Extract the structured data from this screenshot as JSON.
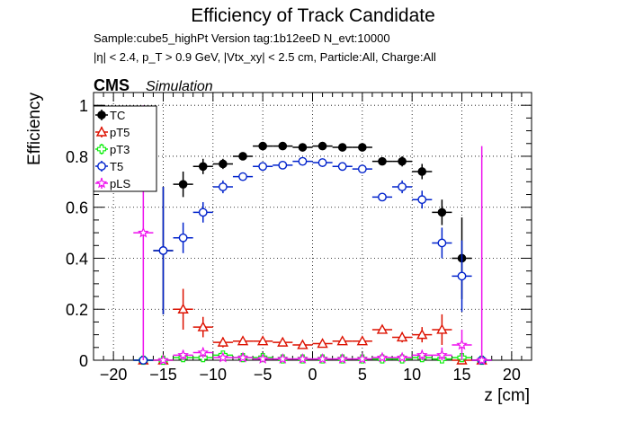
{
  "chart_data": {
    "type": "scatter",
    "title": "Efficiency of Track Candidate",
    "info_line1": "Sample:cube5_highPt   Version tag:1b12eeD  N_evt:10000",
    "info_line2": "|η| < 2.4, p_T > 0.9 GeV, |Vtx_xy| < 2.5 cm, Particle:All, Charge:All",
    "cms_label": "CMS",
    "sim_label": "Simulation",
    "xlabel": "z [cm]",
    "ylabel": "Efficiency",
    "xlim": [
      -22,
      22
    ],
    "ylim": [
      0,
      1.05
    ],
    "x_ticks": [
      -20,
      -15,
      -10,
      -5,
      0,
      5,
      10,
      15,
      20
    ],
    "y_ticks": [
      0,
      0.2,
      0.4,
      0.6,
      0.8,
      1
    ],
    "grid": true,
    "legend_position": "top-left",
    "bin_half_width": 1,
    "series": [
      {
        "name": "TC",
        "color": "#000000",
        "marker": "filled-circle",
        "x": [
          -17,
          -15,
          -13,
          -11,
          -9,
          -7,
          -5,
          -3,
          -1,
          1,
          3,
          5,
          7,
          9,
          11,
          13,
          15,
          17
        ],
        "y": [
          0,
          0.43,
          0.69,
          0.76,
          0.77,
          0.8,
          0.84,
          0.84,
          0.835,
          0.84,
          0.835,
          0.835,
          0.78,
          0.78,
          0.74,
          0.58,
          0.4,
          0
        ],
        "yerr": [
          0,
          0.25,
          0.05,
          0.03,
          0.02,
          0.01,
          0.005,
          0.005,
          0.005,
          0.005,
          0.005,
          0.005,
          0.01,
          0.02,
          0.03,
          0.05,
          0.16,
          0
        ]
      },
      {
        "name": "pT5",
        "color": "#dd1100",
        "marker": "open-triangle",
        "x": [
          -17,
          -15,
          -13,
          -11,
          -9,
          -7,
          -5,
          -3,
          -1,
          1,
          3,
          5,
          7,
          9,
          11,
          13,
          15,
          17
        ],
        "y": [
          0,
          0,
          0.2,
          0.13,
          0.07,
          0.075,
          0.075,
          0.07,
          0.06,
          0.065,
          0.075,
          0.075,
          0.12,
          0.09,
          0.1,
          0.12,
          0,
          0
        ],
        "yerr": [
          0,
          0,
          0.08,
          0.04,
          0.02,
          0.01,
          0.01,
          0.01,
          0.01,
          0.01,
          0.01,
          0.01,
          0.015,
          0.02,
          0.03,
          0.06,
          0,
          0
        ]
      },
      {
        "name": "pT3",
        "color": "#11ee11",
        "marker": "open-cross",
        "x": [
          -17,
          -15,
          -13,
          -11,
          -9,
          -7,
          -5,
          -3,
          -1,
          1,
          3,
          5,
          7,
          9,
          11,
          13,
          15,
          17
        ],
        "y": [
          0,
          0,
          0.01,
          0.01,
          0.02,
          0.01,
          0.01,
          0.005,
          0.005,
          0.005,
          0.005,
          0.005,
          0.005,
          0.005,
          0.01,
          0.005,
          0.01,
          0
        ],
        "yerr": [
          0,
          0,
          0.01,
          0.01,
          0.015,
          0.005,
          0.005,
          0.004,
          0.004,
          0.004,
          0.004,
          0.004,
          0.004,
          0.004,
          0.006,
          0.004,
          0.01,
          0
        ]
      },
      {
        "name": "T5",
        "color": "#0022cc",
        "marker": "open-circle",
        "x": [
          -17,
          -15,
          -13,
          -11,
          -9,
          -7,
          -5,
          -3,
          -1,
          1,
          3,
          5,
          7,
          9,
          11,
          13,
          15,
          17
        ],
        "y": [
          0,
          0.43,
          0.48,
          0.58,
          0.68,
          0.72,
          0.76,
          0.765,
          0.78,
          0.775,
          0.76,
          0.75,
          0.64,
          0.68,
          0.63,
          0.46,
          0.33,
          0
        ],
        "yerr": [
          0,
          0.25,
          0.06,
          0.04,
          0.025,
          0.01,
          0.005,
          0.005,
          0.005,
          0.005,
          0.005,
          0.005,
          0.015,
          0.025,
          0.035,
          0.06,
          0.14,
          0
        ]
      },
      {
        "name": "pLS",
        "color": "#ee11ee",
        "marker": "open-star",
        "x": [
          -17,
          -15,
          -13,
          -11,
          -9,
          -7,
          -5,
          -3,
          -1,
          1,
          3,
          5,
          7,
          9,
          11,
          13,
          15,
          17
        ],
        "y": [
          0.5,
          0,
          0.02,
          0.03,
          0.01,
          0.01,
          0.005,
          0.005,
          0.005,
          0.005,
          0.005,
          0.005,
          0.01,
          0.01,
          0.02,
          0.02,
          0.06,
          0
        ],
        "yerr": [
          0.5,
          0,
          0.02,
          0.02,
          0.01,
          0.005,
          0.004,
          0.004,
          0.004,
          0.004,
          0.004,
          0.004,
          0.005,
          0.008,
          0.02,
          0.03,
          0.06,
          0.84
        ]
      }
    ]
  }
}
